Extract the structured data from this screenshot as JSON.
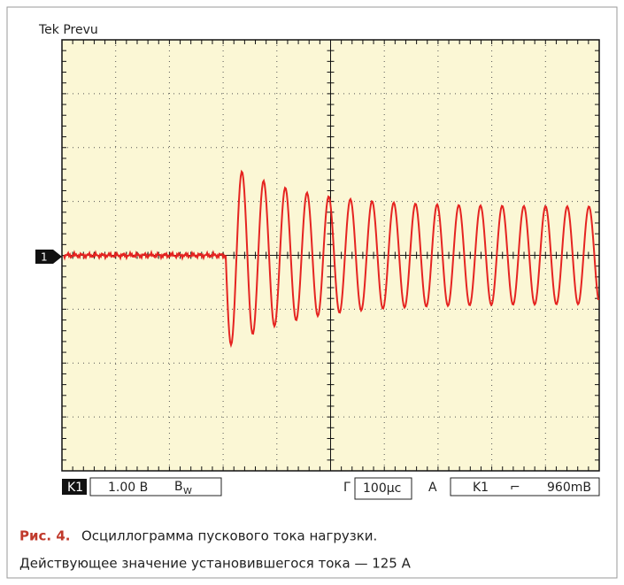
{
  "screen": {
    "label": "Tek Prevu",
    "channel_marker": "1"
  },
  "status_bar": {
    "channel": "K1",
    "scale": "1.00 В",
    "bandwidth": "B",
    "bandwidth_sub": "W",
    "time_prefix": "Г",
    "timebase": "100µс",
    "trigger_prefix": "А",
    "trigger_channel": "K1",
    "trigger_slope": "⌐",
    "trigger_level": "960mВ"
  },
  "caption": {
    "label": "Рис. 4.",
    "text": "Осциллограмма пускового тока нагрузки.",
    "line2": "Действующее значение установившегося тока — 125 А"
  }
}
